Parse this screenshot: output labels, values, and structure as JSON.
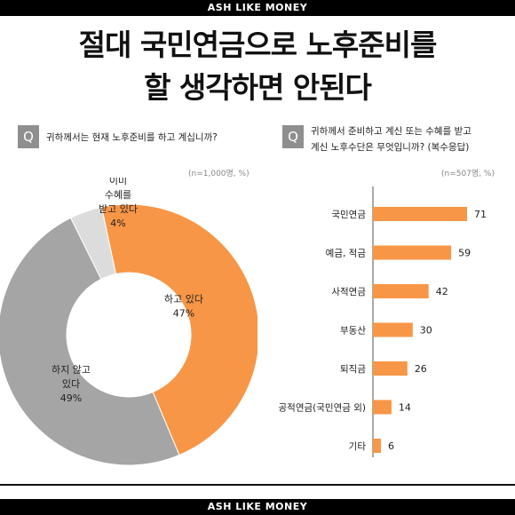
{
  "brand": {
    "top": "ASH LIKE MONEY",
    "bottom": "ASH LIKE MONEY"
  },
  "headline": {
    "line1": "절대 국민연금으로 노후준비를",
    "line2": "할 생각하면 안된다"
  },
  "left_panel": {
    "q_label": "Q",
    "question": "귀하께서는 현재 노후준비를 하고 계십니까?",
    "note": "(n=1,000명, %)"
  },
  "right_panel": {
    "q_label": "Q",
    "question_line1": "귀하께서 준비하고 계신 또는 수혜를 받고",
    "question_line2": "계신 노후수단은 무엇입니까? (복수응답)",
    "note": "(n=507명, %)"
  },
  "colors": {
    "orange": "#f79646",
    "gray": "#a5a5a5",
    "light_gray": "#dcdcdc",
    "black": "#000000"
  },
  "chart_data": [
    {
      "type": "pie",
      "variant": "donut",
      "slices": [
        {
          "label_lines": [
            "하고 있다",
            "47%"
          ],
          "value": 47,
          "color": "#f79646"
        },
        {
          "label_lines": [
            "하지 않고",
            "있다",
            "49%"
          ],
          "value": 49,
          "color": "#a5a5a5"
        },
        {
          "label_lines": [
            "이미",
            "수혜를",
            "받고 있다",
            "4%"
          ],
          "value": 4,
          "color": "#dcdcdc"
        }
      ]
    },
    {
      "type": "bar",
      "orientation": "horizontal",
      "categories": [
        "국민연금",
        "예금, 적금",
        "사적연금",
        "부동산",
        "퇴직금",
        "공적연금(국민연금 외)",
        "기타"
      ],
      "values": [
        71,
        59,
        42,
        30,
        26,
        14,
        6
      ],
      "color": "#f79646",
      "xlim": [
        0,
        75
      ]
    }
  ]
}
